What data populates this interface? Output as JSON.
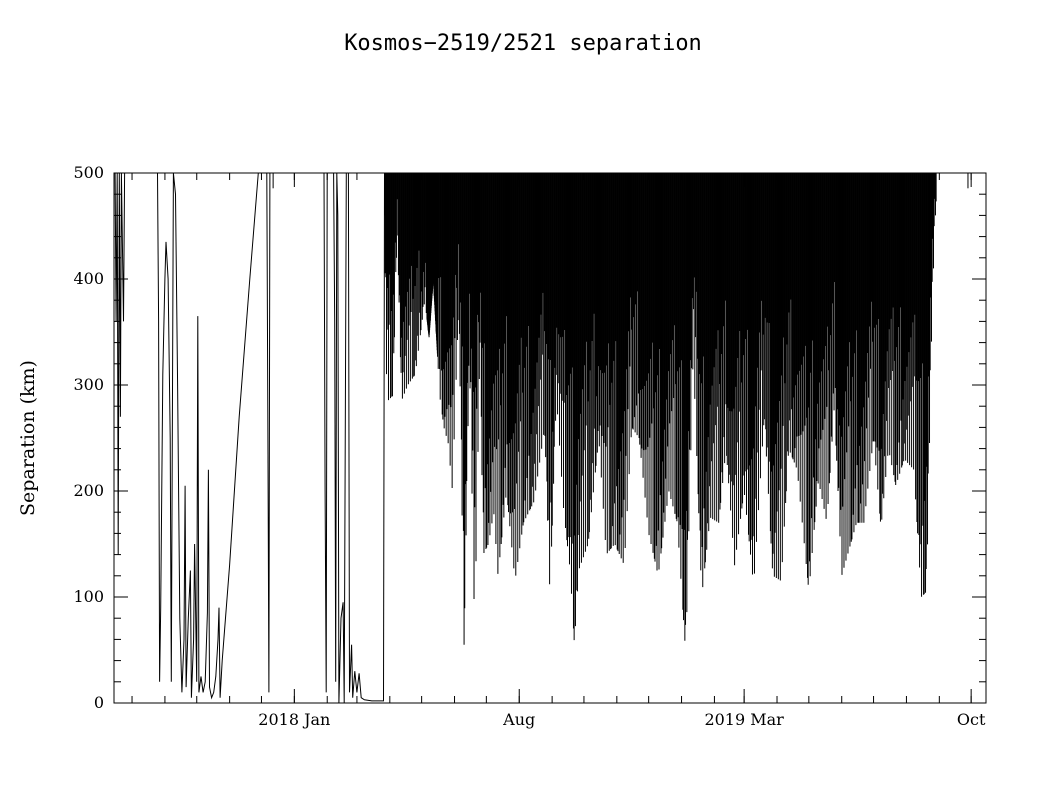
{
  "chart_data": {
    "type": "line",
    "title": "Kosmos−2519/2521 separation",
    "xlabel": "",
    "ylabel": "Separation (km)",
    "y_unit": "km",
    "ylim": [
      0,
      500
    ],
    "y_ticks": [
      0,
      100,
      200,
      300,
      400,
      500
    ],
    "x_unit": "date",
    "xlim": [
      "2017-07-15",
      "2019-10-15"
    ],
    "x_ticks": [
      {
        "label": "2018 Jan",
        "date": "2018-01-01"
      },
      {
        "label": "Aug",
        "date": "2018-08-01"
      },
      {
        "label": "2019 Mar",
        "date": "2019-03-01"
      },
      {
        "label": "Oct",
        "date": "2019-10-01"
      }
    ],
    "grid": false,
    "legend": "none",
    "series": [
      {
        "points": [
          [
            "2017-07-16",
            500
          ],
          [
            "2017-07-17",
            360
          ],
          [
            "2017-07-18",
            500
          ],
          [
            "2017-07-19",
            140
          ],
          [
            "2017-07-20",
            500
          ],
          [
            "2017-07-21",
            270
          ],
          [
            "2017-07-22",
            500
          ],
          [
            "2017-07-24",
            360
          ],
          [
            "2017-07-25",
            500
          ],
          [
            "2017-08-25",
            500
          ],
          [
            "2017-08-26",
            360
          ],
          [
            "2017-08-27",
            20
          ],
          [
            "2017-08-28",
            90
          ],
          [
            "2017-08-30",
            310
          ],
          [
            "2017-09-01",
            400
          ],
          [
            "2017-09-02",
            435
          ],
          [
            "2017-09-04",
            400
          ],
          [
            "2017-09-06",
            250
          ],
          [
            "2017-09-07",
            20
          ],
          [
            "2017-09-09",
            500
          ],
          [
            "2017-09-11",
            480
          ],
          [
            "2017-09-13",
            300
          ],
          [
            "2017-09-15",
            80
          ],
          [
            "2017-09-17",
            10
          ],
          [
            "2017-09-19",
            60
          ],
          [
            "2017-09-20",
            205
          ],
          [
            "2017-09-21",
            15
          ],
          [
            "2017-09-23",
            80
          ],
          [
            "2017-09-25",
            125
          ],
          [
            "2017-09-26",
            5
          ],
          [
            "2017-09-28",
            60
          ],
          [
            "2017-09-29",
            150
          ],
          [
            "2017-10-01",
            20
          ],
          [
            "2017-10-02",
            365
          ],
          [
            "2017-10-03",
            10
          ],
          [
            "2017-10-05",
            25
          ],
          [
            "2017-10-07",
            10
          ],
          [
            "2017-10-09",
            20
          ],
          [
            "2017-10-11",
            85
          ],
          [
            "2017-10-12",
            220
          ],
          [
            "2017-10-13",
            15
          ],
          [
            "2017-10-15",
            5
          ],
          [
            "2017-10-17",
            10
          ],
          [
            "2017-10-19",
            25
          ],
          [
            "2017-10-21",
            60
          ],
          [
            "2017-10-22",
            90
          ],
          [
            "2017-10-23",
            5
          ],
          [
            "2017-10-25",
            40
          ],
          [
            "2017-11-01",
            130
          ],
          [
            "2017-11-10",
            270
          ],
          [
            "2017-11-20",
            400
          ],
          [
            "2017-11-28",
            500
          ],
          [
            "2017-12-06",
            500
          ],
          [
            "2017-12-07",
            280
          ],
          [
            "2017-12-08",
            10
          ],
          [
            "2017-12-09",
            500
          ],
          [
            "2017-12-15",
            500
          ],
          [
            "2018-01-29",
            500
          ],
          [
            "2018-01-30",
            200
          ],
          [
            "2018-01-31",
            10
          ],
          [
            "2018-02-01",
            500
          ],
          [
            "2018-02-07",
            500
          ],
          [
            "2018-02-08",
            360
          ],
          [
            "2018-02-09",
            20
          ],
          [
            "2018-02-10",
            500
          ],
          [
            "2018-02-11",
            460
          ],
          [
            "2018-02-12",
            0
          ],
          [
            "2018-02-14",
            80
          ],
          [
            "2018-02-16",
            95
          ],
          [
            "2018-02-17",
            0
          ],
          [
            "2018-02-19",
            500
          ],
          [
            "2018-02-21",
            500
          ],
          [
            "2018-02-22",
            10
          ],
          [
            "2018-02-24",
            55
          ],
          [
            "2018-02-25",
            5
          ],
          [
            "2018-02-27",
            30
          ],
          [
            "2018-03-01",
            10
          ],
          [
            "2018-03-03",
            28
          ],
          [
            "2018-03-05",
            5
          ],
          [
            "2018-03-08",
            3
          ],
          [
            "2018-03-15",
            2
          ],
          [
            "2018-03-26",
            2
          ],
          [
            "2018-03-27",
            500
          ]
        ]
      }
    ],
    "oscillation_envelope": {
      "upper": 500,
      "cycles_per_day": 1.6,
      "lower_points": [
        [
          "2018-03-27",
          460
        ],
        [
          "2018-03-28",
          330
        ],
        [
          "2018-03-30",
          285
        ],
        [
          "2018-04-04",
          290
        ],
        [
          "2018-04-08",
          450
        ],
        [
          "2018-04-12",
          285
        ],
        [
          "2018-04-18",
          300
        ],
        [
          "2018-04-25",
          310
        ],
        [
          "2018-05-04",
          380
        ],
        [
          "2018-05-08",
          345
        ],
        [
          "2018-05-12",
          400
        ],
        [
          "2018-05-18",
          290
        ],
        [
          "2018-05-22",
          260
        ],
        [
          "2018-05-26",
          245
        ],
        [
          "2018-05-30",
          200
        ],
        [
          "2018-06-05",
          380
        ],
        [
          "2018-06-10",
          55
        ],
        [
          "2018-06-15",
          330
        ],
        [
          "2018-06-20",
          65
        ],
        [
          "2018-06-25",
          340
        ],
        [
          "2018-06-28",
          140
        ],
        [
          "2018-07-03",
          150
        ],
        [
          "2018-07-08",
          180
        ],
        [
          "2018-07-12",
          120
        ],
        [
          "2018-07-20",
          200
        ],
        [
          "2018-07-28",
          115
        ],
        [
          "2018-08-05",
          170
        ],
        [
          "2018-08-15",
          190
        ],
        [
          "2018-08-25",
          260
        ],
        [
          "2018-08-30",
          100
        ],
        [
          "2018-09-05",
          290
        ],
        [
          "2018-09-12",
          180
        ],
        [
          "2018-09-18",
          125
        ],
        [
          "2018-09-22",
          55
        ],
        [
          "2018-09-26",
          125
        ],
        [
          "2018-10-05",
          150
        ],
        [
          "2018-10-15",
          250
        ],
        [
          "2018-10-22",
          140
        ],
        [
          "2018-10-30",
          150
        ],
        [
          "2018-11-08",
          130
        ],
        [
          "2018-11-15",
          260
        ],
        [
          "2018-11-22",
          250
        ],
        [
          "2018-12-01",
          160
        ],
        [
          "2018-12-10",
          120
        ],
        [
          "2018-12-20",
          200
        ],
        [
          "2018-12-28",
          170
        ],
        [
          "2019-01-05",
          45
        ],
        [
          "2019-01-12",
          330
        ],
        [
          "2019-01-20",
          100
        ],
        [
          "2019-01-28",
          175
        ],
        [
          "2019-02-05",
          170
        ],
        [
          "2019-02-12",
          240
        ],
        [
          "2019-02-20",
          130
        ],
        [
          "2019-03-01",
          200
        ],
        [
          "2019-03-10",
          110
        ],
        [
          "2019-03-20",
          270
        ],
        [
          "2019-03-28",
          120
        ],
        [
          "2019-04-05",
          115
        ],
        [
          "2019-04-12",
          240
        ],
        [
          "2019-04-20",
          220
        ],
        [
          "2019-05-01",
          105
        ],
        [
          "2019-05-10",
          210
        ],
        [
          "2019-05-18",
          170
        ],
        [
          "2019-05-25",
          280
        ],
        [
          "2019-06-01",
          120
        ],
        [
          "2019-06-08",
          145
        ],
        [
          "2019-06-15",
          170
        ],
        [
          "2019-06-22",
          170
        ],
        [
          "2019-07-01",
          250
        ],
        [
          "2019-07-08",
          165
        ],
        [
          "2019-07-15",
          240
        ],
        [
          "2019-07-22",
          205
        ],
        [
          "2019-07-30",
          230
        ],
        [
          "2019-08-08",
          220
        ],
        [
          "2019-08-15",
          100
        ],
        [
          "2019-08-20",
          105
        ],
        [
          "2019-08-25",
          360
        ],
        [
          "2019-08-28",
          460
        ]
      ],
      "end": "2019-08-29"
    },
    "isolated_points": [
      [
        "2017-12-12",
        495
      ],
      [
        "2019-09-28",
        495
      ]
    ]
  }
}
